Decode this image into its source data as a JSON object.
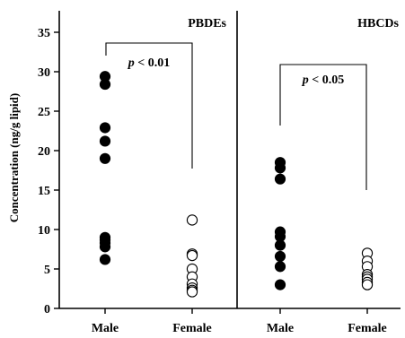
{
  "chart_data": {
    "type": "scatter",
    "ylabel": "Concentration (ng/g lipid)",
    "ylim": [
      0,
      37
    ],
    "yticks": [
      0,
      5,
      10,
      15,
      20,
      25,
      30,
      35
    ],
    "categories": [
      "Male",
      "Female",
      "Male",
      "Female"
    ],
    "panels": [
      {
        "title": "PBDEs",
        "comparison": {
          "p_prefix": "p",
          "p_suffix": " < 0.01"
        },
        "series": [
          {
            "category": "Male",
            "marker": "filled",
            "values": [
              29.4,
              28.4,
              22.9,
              21.2,
              19.0,
              9.0,
              8.7,
              8.3,
              7.8,
              6.2
            ]
          },
          {
            "category": "Female",
            "marker": "open",
            "values": [
              11.2,
              6.9,
              6.7,
              5.0,
              4.0,
              3.1,
              2.6,
              2.3,
              2.1
            ]
          }
        ]
      },
      {
        "title": "HBCDs",
        "comparison": {
          "p_prefix": "p",
          "p_suffix": " < 0.05"
        },
        "series": [
          {
            "category": "Male",
            "marker": "filled",
            "values": [
              18.5,
              17.8,
              16.4,
              9.7,
              9.1,
              8.0,
              6.6,
              5.3,
              3.0
            ]
          },
          {
            "category": "Female",
            "marker": "open",
            "values": [
              7.0,
              6.0,
              5.3,
              4.3,
              4.0,
              3.7,
              3.3,
              3.0
            ]
          }
        ]
      }
    ]
  }
}
